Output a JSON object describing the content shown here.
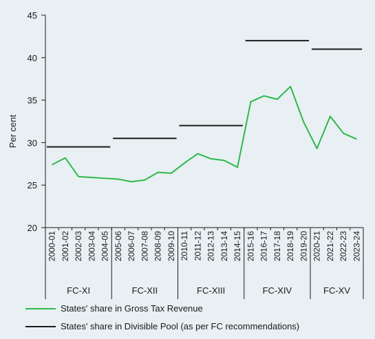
{
  "chart_data": {
    "type": "line",
    "ylabel": "Per cent",
    "ylim": [
      20,
      45
    ],
    "yticks": [
      20,
      25,
      30,
      35,
      40,
      45
    ],
    "categories": [
      "2000-01",
      "2001-02",
      "2002-03",
      "2003-04",
      "2004-05",
      "2005-06",
      "2006-07",
      "2007-08",
      "2008-09",
      "2009-10",
      "2010-11",
      "2011-12",
      "2012-13",
      "2013-14",
      "2014-15",
      "2015-16",
      "2016-17",
      "2017-18",
      "2018-19",
      "2019-20",
      "2020-21",
      "2021-22",
      "2022-23",
      "2023-24"
    ],
    "periods": [
      {
        "name": "FC-XI",
        "start": 0,
        "end": 4,
        "divisible_pool_share": 29.5
      },
      {
        "name": "FC-XII",
        "start": 5,
        "end": 9,
        "divisible_pool_share": 30.5
      },
      {
        "name": "FC-XIII",
        "start": 10,
        "end": 14,
        "divisible_pool_share": 32
      },
      {
        "name": "FC-XIV",
        "start": 15,
        "end": 19,
        "divisible_pool_share": 42
      },
      {
        "name": "FC-XV",
        "start": 20,
        "end": 23,
        "divisible_pool_share": 41
      }
    ],
    "series": [
      {
        "name": "States' share in Gross Tax Revenue",
        "color": "#2db84b",
        "values": [
          27.4,
          28.2,
          26.0,
          25.9,
          25.8,
          25.7,
          25.4,
          25.6,
          26.5,
          26.4,
          27.6,
          28.7,
          28.1,
          27.9,
          27.1,
          34.8,
          35.5,
          35.1,
          36.6,
          32.4,
          29.3,
          33.1,
          31.1,
          30.4
        ]
      },
      {
        "name": "States' share in Divisible Pool (as per FC recommendations)",
        "color": "#1a1a1a"
      }
    ],
    "grid": false,
    "legend_position": "bottom"
  }
}
